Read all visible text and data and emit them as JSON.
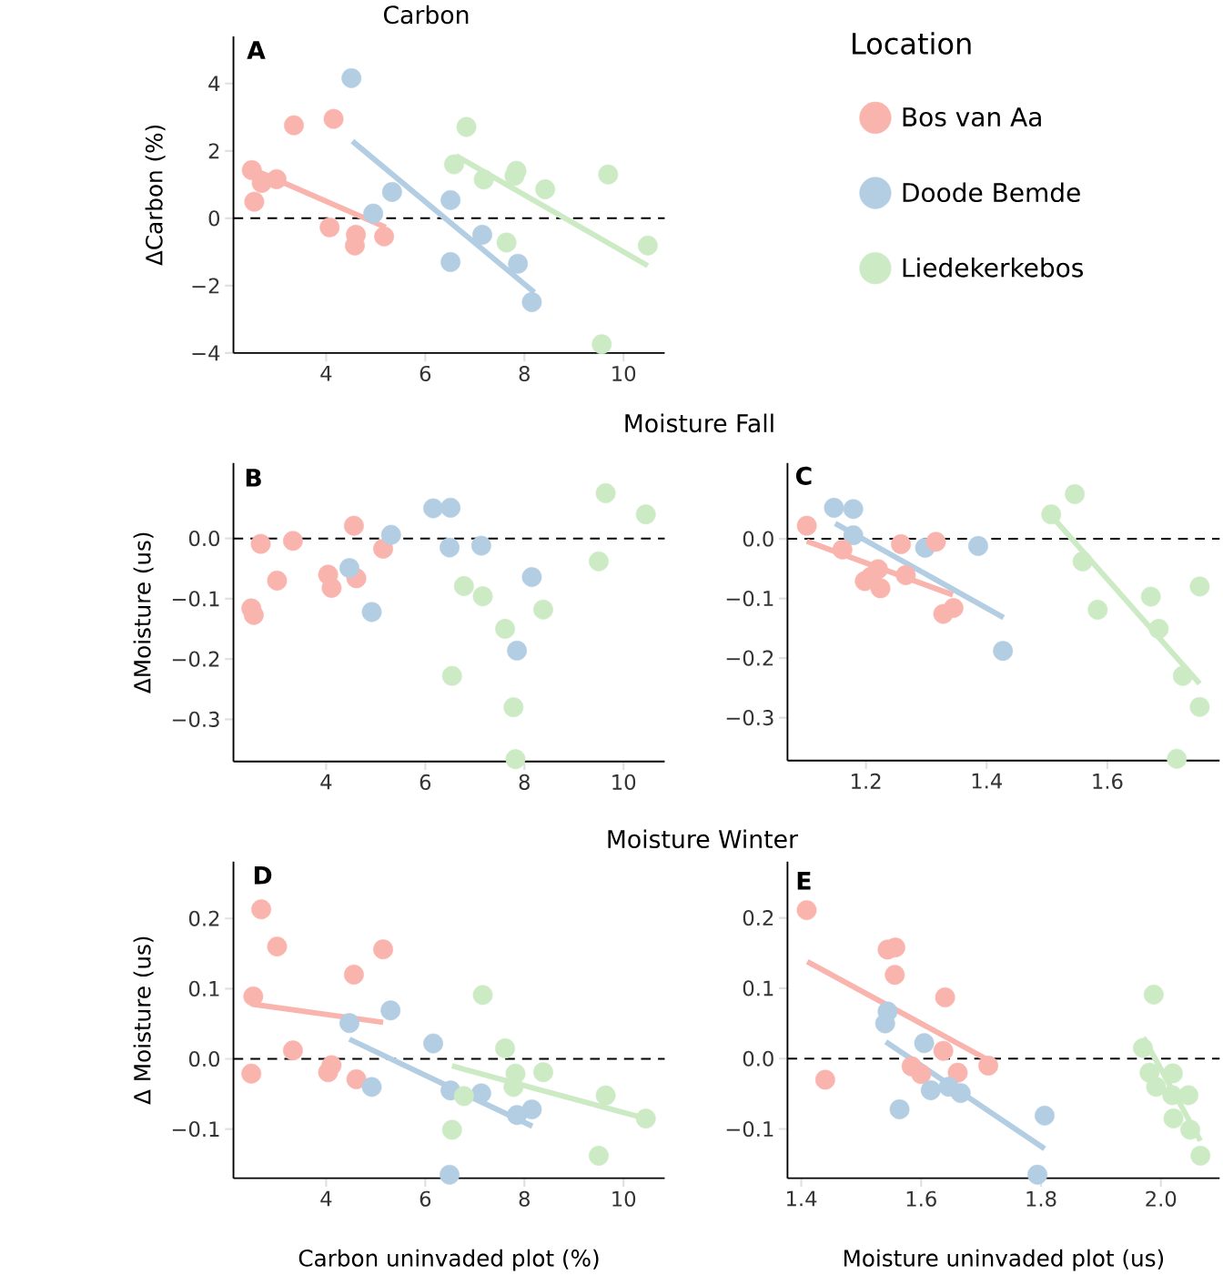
{
  "chart_data": [
    {
      "type": "scatter",
      "title": "Carbon",
      "ylabel": "ΔCarbon (%)",
      "annotations": [
        "A"
      ],
      "legend": "right",
      "legend_title": "Location",
      "marker": "circle",
      "xlim": [
        2.13,
        10.83
      ],
      "ylim": [
        -4,
        5.4
      ],
      "xticks": [
        4,
        6,
        8,
        10
      ],
      "yticks": [
        {
          "value": -4,
          "label": "−4"
        },
        {
          "value": -2,
          "label": "−2"
        },
        0,
        2,
        4
      ],
      "ref_lines": [
        {
          "axis": "y",
          "value": 0,
          "color": "#000000",
          "line_style": "dashed"
        }
      ],
      "series": [
        {
          "name": "Bos van Aa",
          "color": "#f9b4ae",
          "x": [
            2.5,
            2.55,
            2.7,
            3.0,
            3.35,
            4.15,
            4.07,
            4.6,
            4.58,
            5.17
          ],
          "values": [
            1.43,
            0.49,
            1.05,
            1.16,
            2.76,
            2.95,
            -0.27,
            -0.49,
            -0.81,
            -0.54
          ]
        },
        {
          "name": "Doode Bemde",
          "color": "#b3cde3",
          "x": [
            4.51,
            4.95,
            5.33,
            6.51,
            6.51,
            7.15,
            7.87,
            8.15
          ],
          "values": [
            4.16,
            0.14,
            0.78,
            0.54,
            -1.3,
            -0.49,
            -1.35,
            -2.49
          ]
        },
        {
          "name": "Liedekerkebos",
          "color": "#ccebc5",
          "x": [
            6.83,
            6.58,
            7.18,
            7.84,
            7.8,
            8.42,
            9.69,
            7.64,
            10.49,
            9.56
          ],
          "values": [
            2.71,
            1.6,
            1.15,
            1.41,
            1.26,
            0.86,
            1.3,
            -0.72,
            -0.81,
            -3.74
          ]
        },
        {
          "type": "line",
          "marker": "none",
          "color": "#f9b4ae",
          "x": [
            2.5,
            5.2
          ],
          "values": [
            1.47,
            -0.27
          ]
        },
        {
          "type": "line",
          "marker": "none",
          "color": "#b3cde3",
          "x": [
            4.53,
            8.2
          ],
          "values": [
            2.29,
            -2.2
          ]
        },
        {
          "type": "line",
          "marker": "none",
          "color": "#ccebc5",
          "x": [
            6.62,
            10.49
          ],
          "values": [
            1.86,
            -1.41
          ]
        }
      ]
    },
    {
      "type": "scatter",
      "title": "Moisture Fall",
      "ylabel": "ΔMoisture (us)",
      "annotations": [
        "B"
      ],
      "marker": "circle",
      "xlim": [
        2.13,
        10.83
      ],
      "ylim": [
        -0.37,
        0.125
      ],
      "xticks": [
        4,
        6,
        8,
        10
      ],
      "yticks": [
        {
          "value": -0.3,
          "label": "−0.3"
        },
        {
          "value": -0.2,
          "label": "−0.2"
        },
        {
          "value": -0.1,
          "label": "−0.1"
        },
        {
          "value": 0,
          "label": "0.0"
        }
      ],
      "ref_lines": [
        {
          "axis": "y",
          "value": 0,
          "color": "#000000",
          "line_style": "dashed"
        }
      ],
      "series": [
        {
          "color": "#f9b4ae",
          "x": [
            2.49,
            2.54,
            2.68,
            3.01,
            3.33,
            4.04,
            4.11,
            4.56,
            4.61,
            5.15
          ],
          "values": [
            -0.116,
            -0.127,
            -0.009,
            -0.07,
            -0.004,
            -0.06,
            -0.082,
            0.021,
            -0.066,
            -0.017
          ]
        },
        {
          "color": "#b3cde3",
          "x": [
            4.47,
            4.92,
            5.31,
            6.16,
            6.51,
            6.49,
            7.13,
            8.15,
            7.85
          ],
          "values": [
            -0.049,
            -0.122,
            0.006,
            0.05,
            0.051,
            -0.015,
            -0.012,
            -0.064,
            -0.186
          ]
        },
        {
          "color": "#ccebc5",
          "x": [
            9.64,
            10.45,
            9.5,
            6.78,
            7.16,
            8.38,
            7.61,
            6.54,
            7.78,
            7.82
          ],
          "values": [
            0.075,
            0.04,
            -0.038,
            -0.079,
            -0.096,
            -0.118,
            -0.15,
            -0.228,
            -0.28,
            -0.366
          ]
        }
      ]
    },
    {
      "type": "scatter",
      "annotations": [
        "C"
      ],
      "marker": "circle",
      "xlim": [
        1.07,
        1.786
      ],
      "ylim": [
        -0.372,
        0.127
      ],
      "xticks": [
        1.2,
        1.4,
        1.6
      ],
      "yticks": [
        {
          "value": -0.3,
          "label": "−0.3"
        },
        {
          "value": -0.2,
          "label": "−0.2"
        },
        {
          "value": -0.1,
          "label": "−0.1"
        },
        {
          "value": 0,
          "label": "0.0"
        }
      ],
      "ref_lines": [
        {
          "axis": "y",
          "value": 0,
          "color": "#000000",
          "line_style": "dashed"
        }
      ],
      "series": [
        {
          "color": "#b3cde3",
          "x": [
            1.147,
            1.179,
            1.179,
            1.298,
            1.386,
            1.427
          ],
          "values": [
            0.052,
            0.05,
            0.006,
            -0.015,
            -0.012,
            -0.188
          ]
        },
        {
          "color": "#f9b4ae",
          "x": [
            1.102,
            1.161,
            1.198,
            1.208,
            1.22,
            1.224,
            1.266,
            1.258,
            1.316,
            1.328,
            1.345
          ],
          "values": [
            0.022,
            -0.018,
            -0.071,
            -0.064,
            -0.051,
            -0.083,
            -0.061,
            -0.009,
            -0.005,
            -0.126,
            -0.116
          ]
        },
        {
          "color": "#ccebc5",
          "x": [
            1.546,
            1.507,
            1.559,
            1.584,
            1.672,
            1.685,
            1.753,
            1.725,
            1.753,
            1.715
          ],
          "values": [
            0.075,
            0.041,
            -0.038,
            -0.119,
            -0.097,
            -0.151,
            -0.08,
            -0.23,
            -0.282,
            -0.369
          ]
        },
        {
          "type": "line",
          "marker": "none",
          "color": "#f9b4ae",
          "x": [
            1.102,
            1.344
          ],
          "values": [
            -0.004,
            -0.094
          ]
        },
        {
          "type": "line",
          "marker": "none",
          "color": "#b3cde3",
          "x": [
            1.149,
            1.428
          ],
          "values": [
            0.026,
            -0.132
          ]
        },
        {
          "type": "line",
          "marker": "none",
          "color": "#ccebc5",
          "x": [
            1.508,
            1.753
          ],
          "values": [
            0.038,
            -0.243
          ]
        }
      ]
    },
    {
      "type": "scatter",
      "title": "Moisture Winter",
      "xlabel": "Carbon uninvaded plot (%)",
      "ylabel": "Δ Moisture (us)",
      "annotations": [
        "D"
      ],
      "marker": "circle",
      "xlim": [
        2.13,
        10.83
      ],
      "ylim": [
        -0.17,
        0.281
      ],
      "xticks": [
        4,
        6,
        8,
        10
      ],
      "yticks": [
        {
          "value": -0.1,
          "label": "−0.1"
        },
        {
          "value": 0,
          "label": "0.0"
        },
        0.1,
        0.2
      ],
      "ref_lines": [
        {
          "axis": "y",
          "value": 0,
          "color": "#000000",
          "line_style": "dashed"
        }
      ],
      "series": [
        {
          "color": "#f9b4ae",
          "x": [
            2.69,
            3.01,
            5.15,
            4.56,
            2.53,
            3.33,
            2.49,
            4.04,
            4.11,
            4.61
          ],
          "values": [
            0.213,
            0.16,
            0.156,
            0.12,
            0.089,
            0.012,
            -0.021,
            -0.019,
            -0.009,
            -0.029
          ]
        },
        {
          "color": "#b3cde3",
          "x": [
            5.3,
            4.47,
            6.16,
            4.92,
            6.51,
            7.13,
            7.85,
            8.15,
            6.49
          ],
          "values": [
            0.069,
            0.051,
            0.022,
            -0.04,
            -0.045,
            -0.049,
            -0.08,
            -0.072,
            -0.165
          ]
        },
        {
          "color": "#ccebc5",
          "x": [
            7.16,
            7.61,
            7.82,
            7.78,
            8.38,
            6.78,
            9.64,
            10.45,
            6.54,
            9.5
          ],
          "values": [
            0.091,
            0.015,
            -0.021,
            -0.04,
            -0.019,
            -0.053,
            -0.052,
            -0.085,
            -0.101,
            -0.138
          ]
        },
        {
          "type": "line",
          "marker": "none",
          "color": "#f9b4ae",
          "x": [
            2.49,
            5.15
          ],
          "values": [
            0.078,
            0.052
          ]
        },
        {
          "type": "line",
          "marker": "none",
          "color": "#b3cde3",
          "x": [
            4.47,
            8.16
          ],
          "values": [
            0.028,
            -0.096
          ]
        },
        {
          "type": "line",
          "marker": "none",
          "color": "#ccebc5",
          "x": [
            6.54,
            10.45
          ],
          "values": [
            -0.01,
            -0.085
          ]
        }
      ]
    },
    {
      "type": "scatter",
      "xlabel": "Moisture uninvaded plot (us)",
      "annotations": [
        "E"
      ],
      "marker": "circle",
      "xlim": [
        1.377,
        2.098
      ],
      "ylim": [
        -0.17,
        0.28
      ],
      "xticks": [
        1.4,
        1.6,
        1.8,
        {
          "value": 2,
          "label": "2.0"
        }
      ],
      "yticks": [
        {
          "value": -0.1,
          "label": "−0.1"
        },
        {
          "value": 0,
          "label": "0.0"
        },
        0.1,
        0.2
      ],
      "ref_lines": [
        {
          "axis": "y",
          "value": 0,
          "color": "#000000",
          "line_style": "dashed"
        }
      ],
      "series": [
        {
          "color": "#f9b4ae",
          "x": [
            1.409,
            1.544,
            1.557,
            1.556,
            1.64,
            1.637,
            1.712,
            1.661,
            1.584,
            1.6,
            1.44
          ],
          "values": [
            0.211,
            0.155,
            0.158,
            0.119,
            0.087,
            0.011,
            -0.01,
            -0.02,
            -0.011,
            -0.022,
            -0.03
          ]
        },
        {
          "color": "#b3cde3",
          "x": [
            1.544,
            1.54,
            1.605,
            1.616,
            1.646,
            1.666,
            1.564,
            1.806,
            1.794
          ],
          "values": [
            0.067,
            0.05,
            0.022,
            -0.045,
            -0.04,
            -0.049,
            -0.072,
            -0.081,
            -0.165
          ]
        },
        {
          "color": "#ccebc5",
          "x": [
            1.988,
            1.97,
            1.981,
            2.02,
            1.992,
            2.019,
            2.046,
            2.021,
            2.049,
            2.066
          ],
          "values": [
            0.091,
            0.015,
            -0.02,
            -0.021,
            -0.04,
            -0.052,
            -0.052,
            -0.085,
            -0.101,
            -0.138
          ]
        },
        {
          "type": "line",
          "marker": "none",
          "color": "#f9b4ae",
          "x": [
            1.41,
            1.712
          ],
          "values": [
            0.138,
            -0.002
          ]
        },
        {
          "type": "line",
          "marker": "none",
          "color": "#b3cde3",
          "x": [
            1.541,
            1.806
          ],
          "values": [
            0.024,
            -0.128
          ]
        },
        {
          "type": "line",
          "marker": "none",
          "color": "#ccebc5",
          "x": [
            1.971,
            2.066
          ],
          "values": [
            0.03,
            -0.117
          ]
        }
      ]
    }
  ]
}
